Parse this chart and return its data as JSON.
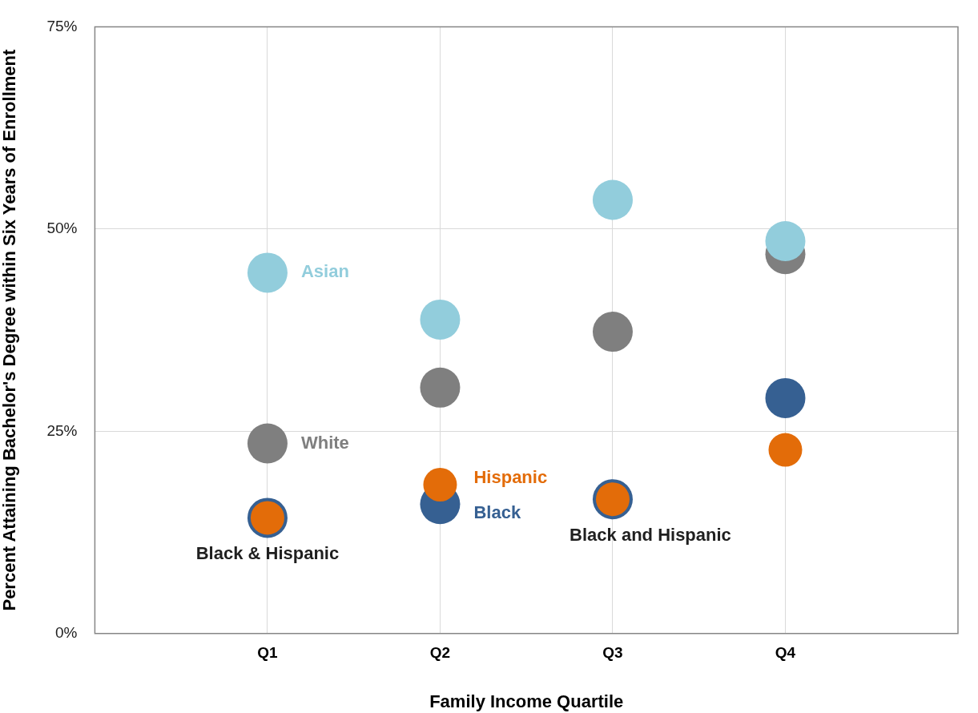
{
  "chart_data": {
    "type": "scatter",
    "xlabel": "Family Income Quartile",
    "ylabel": "Percent Attaining Bachelor's Degree within Six Years of Enrollment",
    "categories": [
      "Q1",
      "Q2",
      "Q3",
      "Q4"
    ],
    "series": [
      {
        "color": "#e36c09",
        "values": [
          14.3,
          18.4,
          16.6,
          22.7
        ]
      },
      {
        "color": "#366092",
        "values": [
          14.3,
          16.0,
          16.6,
          29.1
        ]
      },
      {
        "color": "#92cddc",
        "values": [
          44.6,
          38.8,
          53.6,
          48.5
        ]
      },
      {
        "color": "#7f7f7f",
        "values": [
          23.5,
          30.4,
          37.3,
          46.9
        ]
      }
    ],
    "ylim": [
      0,
      75
    ],
    "yticks": [
      {
        "value": 0,
        "label": "0%"
      },
      {
        "value": 25,
        "label": "25%"
      },
      {
        "value": 50,
        "label": "50%"
      },
      {
        "value": 75,
        "label": "75%"
      }
    ],
    "grid": true,
    "legend": false,
    "marker": "circle",
    "annotations": [
      {
        "text": "Asian",
        "x": "Q1",
        "y": 44.6
      },
      {
        "text": "White",
        "x": "Q1",
        "y": 23.5
      },
      {
        "text": "Hispanic",
        "x": "Q2",
        "y": 18.4
      },
      {
        "text": "Black",
        "x": "Q2",
        "y": 16.0
      },
      {
        "text": "Black & Hispanic",
        "x": "Q1",
        "y": 14.3
      },
      {
        "text": "Black and Hispanic",
        "x": "Q3",
        "y": 16.6
      }
    ]
  }
}
